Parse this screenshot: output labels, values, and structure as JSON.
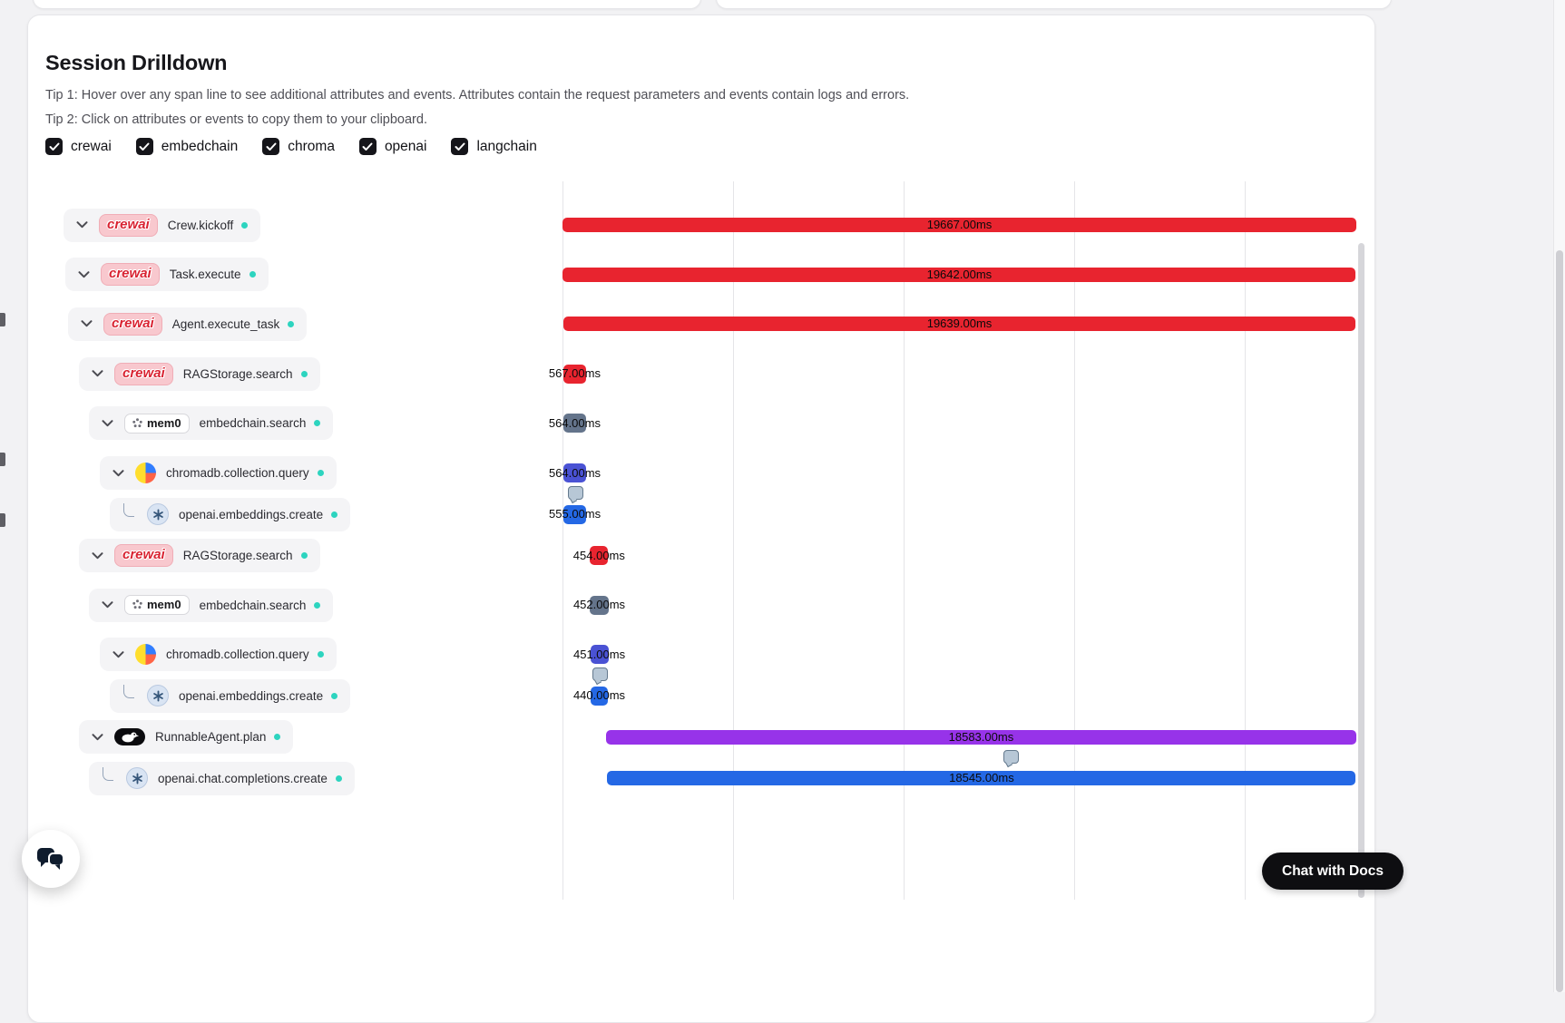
{
  "header": {
    "title": "Session Drilldown",
    "tip1": "Tip 1: Hover over any span line to see additional attributes and events. Attributes contain the request parameters and events contain logs and errors.",
    "tip2": "Tip 2: Click on attributes or events to copy them to your clipboard."
  },
  "filters": [
    {
      "label": "crewai",
      "checked": true
    },
    {
      "label": "embedchain",
      "checked": true
    },
    {
      "label": "chroma",
      "checked": true
    },
    {
      "label": "openai",
      "checked": true
    },
    {
      "label": "langchain",
      "checked": true
    }
  ],
  "logos": {
    "crewai_wordmark": "crewai",
    "mem0_wordmark": "mem0"
  },
  "icons": {
    "row_toggle": "chevron-down",
    "child_link": "elbow-connector",
    "event_marker": "speech-bubble",
    "chat_widget": "chat-bubbles"
  },
  "colors": {
    "status_dot": "#2dd4bf",
    "grid": "#e5e5e8",
    "service_colors": {
      "crewai": "#e8242f",
      "mem0": "#64748b",
      "chroma": "#4a52d4",
      "openai": "#2468e5",
      "langchain": "#9733e9"
    }
  },
  "chart_data": {
    "type": "waterfall-trace",
    "time_unit": "ms",
    "xlim": [
      0,
      19667
    ],
    "grid": true,
    "rows": [
      {
        "name": "Crew.kickoff",
        "service": "crewai",
        "depth": 0,
        "start_ms": 0,
        "duration_ms": 19667,
        "duration_label": "19667.00ms",
        "connector": "chevron"
      },
      {
        "name": "Task.execute",
        "service": "crewai",
        "depth": 1,
        "start_ms": 10,
        "duration_ms": 19642,
        "duration_label": "19642.00ms",
        "connector": "chevron"
      },
      {
        "name": "Agent.execute_task",
        "service": "crewai",
        "depth": 2,
        "start_ms": 14,
        "duration_ms": 19639,
        "duration_label": "19639.00ms",
        "connector": "chevron"
      },
      {
        "name": "RAGStorage.search",
        "service": "crewai",
        "depth": 3,
        "start_ms": 18,
        "duration_ms": 567,
        "duration_label": "567.00ms",
        "connector": "chevron"
      },
      {
        "name": "embedchain.search",
        "service": "mem0",
        "depth": 4,
        "start_ms": 20,
        "duration_ms": 564,
        "duration_label": "564.00ms",
        "connector": "chevron"
      },
      {
        "name": "chromadb.collection.query",
        "service": "chroma",
        "depth": 5,
        "start_ms": 22,
        "duration_ms": 564,
        "duration_label": "564.00ms",
        "connector": "chevron"
      },
      {
        "name": "openai.embeddings.create",
        "service": "openai",
        "depth": 6,
        "start_ms": 28,
        "duration_ms": 555,
        "duration_label": "555.00ms",
        "connector": "elbow",
        "event_at_ms": 300
      },
      {
        "name": "RAGStorage.search",
        "service": "crewai",
        "depth": 3,
        "start_ms": 680,
        "duration_ms": 454,
        "duration_label": "454.00ms",
        "connector": "chevron"
      },
      {
        "name": "embedchain.search",
        "service": "mem0",
        "depth": 4,
        "start_ms": 684,
        "duration_ms": 452,
        "duration_label": "452.00ms",
        "connector": "chevron"
      },
      {
        "name": "chromadb.collection.query",
        "service": "chroma",
        "depth": 5,
        "start_ms": 686,
        "duration_ms": 451,
        "duration_label": "451.00ms",
        "connector": "chevron"
      },
      {
        "name": "openai.embeddings.create",
        "service": "openai",
        "depth": 6,
        "start_ms": 690,
        "duration_ms": 440,
        "duration_label": "440.00ms",
        "connector": "elbow",
        "event_at_ms": 915
      },
      {
        "name": "RunnableAgent.plan",
        "service": "langchain",
        "depth": 3,
        "start_ms": 1080,
        "duration_ms": 18583,
        "duration_label": "18583.00ms",
        "connector": "chevron"
      },
      {
        "name": "openai.chat.completions.create",
        "service": "openai",
        "depth": 4,
        "start_ms": 1110,
        "duration_ms": 18545,
        "duration_label": "18545.00ms",
        "connector": "elbow",
        "event_at_ms": 11100
      }
    ]
  },
  "widgets": {
    "chat_with_docs": "Chat with Docs"
  }
}
